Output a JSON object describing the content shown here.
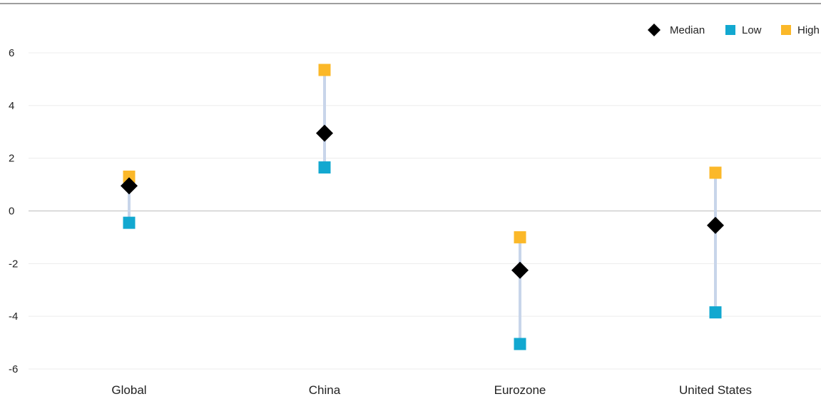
{
  "chart_data": {
    "type": "scatter",
    "categories": [
      "Global",
      "China",
      "Eurozone",
      "United States"
    ],
    "series": [
      {
        "name": "Median",
        "marker": "diamond",
        "color": "#000000",
        "values": [
          0.95,
          2.95,
          -2.25,
          -0.55
        ]
      },
      {
        "name": "Low",
        "marker": "square",
        "color": "#12A8D0",
        "values": [
          -0.45,
          1.65,
          -5.05,
          -3.85
        ]
      },
      {
        "name": "High",
        "marker": "square",
        "color": "#FBB829",
        "values": [
          1.3,
          5.35,
          -1.0,
          1.45
        ]
      }
    ],
    "y_ticks": [
      6,
      4,
      2,
      0,
      -2,
      -4,
      -6
    ],
    "ylim": [
      -6,
      6
    ],
    "grid": true,
    "legend_position": "top-right",
    "range_line_color": "#C8D5EA"
  }
}
